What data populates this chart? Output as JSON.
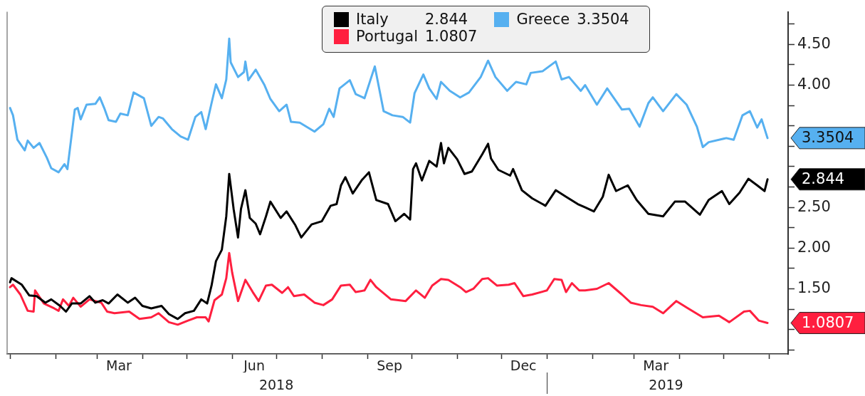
{
  "chart_data": {
    "type": "line",
    "legend": "top",
    "xlim": [
      "2017-12-30",
      "2019-06-14"
    ],
    "xticks": [
      {
        "value": "2018-01-01",
        "label": null
      },
      {
        "value": "2018-02-01",
        "label": null
      },
      {
        "value": "2018-03-01",
        "label": null
      },
      {
        "value": "2018-03-16",
        "label": "Mar"
      },
      {
        "value": "2018-04-01",
        "label": null
      },
      {
        "value": "2018-05-01",
        "label": null
      },
      {
        "value": "2018-06-01",
        "label": null
      },
      {
        "value": "2018-06-16",
        "label": "Jun"
      },
      {
        "value": "2018-07-01",
        "label": null
      },
      {
        "value": "2018-08-01",
        "label": null
      },
      {
        "value": "2018-09-01",
        "label": null
      },
      {
        "value": "2018-09-16",
        "label": "Sep"
      },
      {
        "value": "2018-10-01",
        "label": null
      },
      {
        "value": "2018-11-01",
        "label": null
      },
      {
        "value": "2018-12-01",
        "label": null
      },
      {
        "value": "2018-12-16",
        "label": "Dec"
      },
      {
        "value": "2019-01-01",
        "label": null
      },
      {
        "value": "2019-02-01",
        "label": null
      },
      {
        "value": "2019-03-01",
        "label": null
      },
      {
        "value": "2019-03-16",
        "label": "Mar"
      },
      {
        "value": "2019-04-01",
        "label": null
      },
      {
        "value": "2019-05-01",
        "label": null
      },
      {
        "value": "2019-06-01",
        "label": null
      }
    ],
    "x2lim": [
      "2017-12-30",
      "2019-06-14"
    ],
    "x2ticks": [
      {
        "value": "2018-07-01",
        "label": "2018"
      },
      {
        "value": "2019-01-01",
        "label": null
      },
      {
        "value": "2019-03-23",
        "label": "2019"
      }
    ],
    "ylim": [
      0.7,
      4.9
    ],
    "yticks": [
      {
        "value": 0.75,
        "label": null
      },
      {
        "value": 1,
        "label": null
      },
      {
        "value": 1.25,
        "label": null
      },
      {
        "value": 1.5,
        "label": "1.50"
      },
      {
        "value": 1.75,
        "label": null
      },
      {
        "value": 2,
        "label": "2.00"
      },
      {
        "value": 2.25,
        "label": null
      },
      {
        "value": 2.5,
        "label": "2.50"
      },
      {
        "value": 2.75,
        "label": null
      },
      {
        "value": 3,
        "label": null
      },
      {
        "value": 3.25,
        "label": null
      },
      {
        "value": 3.5,
        "label": null
      },
      {
        "value": 3.75,
        "label": null
      },
      {
        "value": 4,
        "label": "4.00"
      },
      {
        "value": 4.25,
        "label": null
      },
      {
        "value": 4.5,
        "label": "4.50"
      },
      {
        "value": 4.75,
        "label": null
      }
    ],
    "annotations": [
      {
        "text": "2.844",
        "x": "2019-05-31",
        "y": 2.844
      },
      {
        "text": "3.3504",
        "x": "2019-05-31",
        "y": 3.3504
      },
      {
        "text": "1.0807",
        "x": "2019-05-31",
        "y": 1.0807
      }
    ],
    "series": [
      {
        "name": "Italy",
        "color": "#000000",
        "x": [
          "2018-01-01",
          "2018-01-02",
          "2018-01-09",
          "2018-01-14",
          "2018-01-19",
          "2018-01-25",
          "2018-01-29",
          "2018-02-04",
          "2018-02-08",
          "2018-02-12",
          "2018-02-18",
          "2018-02-24",
          "2018-02-28",
          "2018-03-05",
          "2018-03-09",
          "2018-03-15",
          "2018-03-22",
          "2018-03-27",
          "2018-04-01",
          "2018-04-07",
          "2018-04-14",
          "2018-04-19",
          "2018-04-25",
          "2018-04-30",
          "2018-05-06",
          "2018-05-11",
          "2018-05-15",
          "2018-05-18",
          "2018-05-21",
          "2018-05-25",
          "2018-05-28",
          "2018-05-30",
          "2018-06-02",
          "2018-06-05",
          "2018-06-07",
          "2018-06-10",
          "2018-06-13",
          "2018-06-17",
          "2018-06-20",
          "2018-06-24",
          "2018-06-27",
          "2018-07-04",
          "2018-07-08",
          "2018-07-14",
          "2018-07-18",
          "2018-07-25",
          "2018-08-01",
          "2018-08-07",
          "2018-08-11",
          "2018-08-14",
          "2018-08-17",
          "2018-08-22",
          "2018-08-28",
          "2018-09-02",
          "2018-09-07",
          "2018-09-15",
          "2018-09-20",
          "2018-09-26",
          "2018-09-30",
          "2018-10-02",
          "2018-10-04",
          "2018-10-08",
          "2018-10-13",
          "2018-10-18",
          "2018-10-21",
          "2018-10-23",
          "2018-10-26",
          "2018-11-01",
          "2018-11-06",
          "2018-11-11",
          "2018-11-18",
          "2018-11-22",
          "2018-11-24",
          "2018-11-29",
          "2018-12-07",
          "2018-12-09",
          "2018-12-15",
          "2018-12-22",
          "2018-12-31",
          "2019-01-07",
          "2019-01-14",
          "2019-01-22",
          "2019-01-27",
          "2019-02-02",
          "2019-02-08",
          "2019-02-12",
          "2019-02-17",
          "2019-02-25",
          "2019-03-03",
          "2019-03-11",
          "2019-03-21",
          "2019-03-29",
          "2019-04-05",
          "2019-04-15",
          "2019-04-21",
          "2019-04-30",
          "2019-05-05",
          "2019-05-12",
          "2019-05-18",
          "2019-05-24",
          "2019-05-29",
          "2019-05-31"
        ],
        "values": [
          1.58,
          1.63,
          1.55,
          1.42,
          1.41,
          1.33,
          1.37,
          1.29,
          1.22,
          1.32,
          1.32,
          1.41,
          1.33,
          1.36,
          1.32,
          1.43,
          1.33,
          1.39,
          1.29,
          1.26,
          1.29,
          1.19,
          1.13,
          1.2,
          1.23,
          1.37,
          1.32,
          1.54,
          1.84,
          1.98,
          2.39,
          2.91,
          2.48,
          2.13,
          2.48,
          2.71,
          2.37,
          2.3,
          2.17,
          2.39,
          2.57,
          2.37,
          2.45,
          2.28,
          2.13,
          2.29,
          2.33,
          2.52,
          2.54,
          2.77,
          2.87,
          2.67,
          2.83,
          2.93,
          2.59,
          2.54,
          2.33,
          2.42,
          2.35,
          2.97,
          3.04,
          2.83,
          3.07,
          3.0,
          3.29,
          3.04,
          3.23,
          3.09,
          2.91,
          2.94,
          3.15,
          3.28,
          3.1,
          2.96,
          2.89,
          2.97,
          2.71,
          2.61,
          2.52,
          2.71,
          2.63,
          2.54,
          2.5,
          2.45,
          2.63,
          2.9,
          2.7,
          2.77,
          2.59,
          2.42,
          2.39,
          2.57,
          2.57,
          2.41,
          2.59,
          2.7,
          2.54,
          2.68,
          2.85,
          2.77,
          2.7,
          2.844
        ]
      },
      {
        "name": "Greece",
        "color": "#56b0f0",
        "x": [
          "2018-01-01",
          "2018-01-03",
          "2018-01-06",
          "2018-01-11",
          "2018-01-13",
          "2018-01-17",
          "2018-01-21",
          "2018-01-26",
          "2018-01-29",
          "2018-02-03",
          "2018-02-07",
          "2018-02-09",
          "2018-02-14",
          "2018-02-16",
          "2018-02-18",
          "2018-02-22",
          "2018-02-28",
          "2018-03-03",
          "2018-03-06",
          "2018-03-09",
          "2018-03-14",
          "2018-03-17",
          "2018-03-22",
          "2018-03-26",
          "2018-04-02",
          "2018-04-07",
          "2018-04-12",
          "2018-04-15",
          "2018-04-21",
          "2018-04-27",
          "2018-05-02",
          "2018-05-07",
          "2018-05-11",
          "2018-05-14",
          "2018-05-18",
          "2018-05-21",
          "2018-05-25",
          "2018-05-28",
          "2018-05-30",
          "2018-05-31",
          "2018-06-05",
          "2018-06-09",
          "2018-06-10",
          "2018-06-12",
          "2018-06-17",
          "2018-06-23",
          "2018-06-27",
          "2018-07-03",
          "2018-07-08",
          "2018-07-11",
          "2018-07-17",
          "2018-07-27",
          "2018-08-02",
          "2018-08-06",
          "2018-08-09",
          "2018-08-13",
          "2018-08-20",
          "2018-08-24",
          "2018-08-30",
          "2018-09-06",
          "2018-09-12",
          "2018-09-18",
          "2018-09-25",
          "2018-09-30",
          "2018-10-03",
          "2018-10-09",
          "2018-10-13",
          "2018-10-18",
          "2018-10-21",
          "2018-10-27",
          "2018-11-03",
          "2018-11-09",
          "2018-11-17",
          "2018-11-22",
          "2018-11-27",
          "2018-12-05",
          "2018-12-11",
          "2018-12-18",
          "2018-12-21",
          "2018-12-29",
          "2019-01-07",
          "2019-01-11",
          "2019-01-16",
          "2019-01-24",
          "2019-01-27",
          "2019-02-04",
          "2019-02-11",
          "2019-02-21",
          "2019-02-26",
          "2019-03-05",
          "2019-03-11",
          "2019-03-14",
          "2019-03-21",
          "2019-03-30",
          "2019-04-06",
          "2019-04-13",
          "2019-04-17",
          "2019-04-21",
          "2019-05-03",
          "2019-05-08",
          "2019-05-14",
          "2019-05-19",
          "2019-05-24",
          "2019-05-27",
          "2019-05-31"
        ],
        "values": [
          3.72,
          3.63,
          3.33,
          3.2,
          3.32,
          3.23,
          3.29,
          3.11,
          2.98,
          2.93,
          3.03,
          2.97,
          3.7,
          3.72,
          3.58,
          3.76,
          3.77,
          3.85,
          3.72,
          3.57,
          3.55,
          3.65,
          3.63,
          3.91,
          3.84,
          3.5,
          3.61,
          3.59,
          3.46,
          3.37,
          3.33,
          3.61,
          3.67,
          3.46,
          3.78,
          4.01,
          3.84,
          4.07,
          4.57,
          4.28,
          4.1,
          4.16,
          4.29,
          4.06,
          4.19,
          4.0,
          3.83,
          3.68,
          3.76,
          3.55,
          3.54,
          3.43,
          3.52,
          3.71,
          3.61,
          3.96,
          4.06,
          3.89,
          3.84,
          4.23,
          3.68,
          3.63,
          3.61,
          3.54,
          3.9,
          4.13,
          3.96,
          3.83,
          4.04,
          3.93,
          3.85,
          3.91,
          4.1,
          4.3,
          4.1,
          3.93,
          4.04,
          4.01,
          4.15,
          4.17,
          4.29,
          4.07,
          4.1,
          3.93,
          4.0,
          3.76,
          3.96,
          3.7,
          3.71,
          3.49,
          3.78,
          3.85,
          3.68,
          3.89,
          3.76,
          3.49,
          3.24,
          3.3,
          3.35,
          3.33,
          3.63,
          3.68,
          3.48,
          3.58,
          3.3504
        ]
      },
      {
        "name": "Portugal",
        "color": "#ff1f3f",
        "x": [
          "2018-01-01",
          "2018-01-03",
          "2018-01-08",
          "2018-01-13",
          "2018-01-17",
          "2018-01-18",
          "2018-01-24",
          "2018-01-31",
          "2018-02-03",
          "2018-02-06",
          "2018-02-10",
          "2018-02-13",
          "2018-02-18",
          "2018-02-24",
          "2018-03-04",
          "2018-03-08",
          "2018-03-13",
          "2018-03-23",
          "2018-03-30",
          "2018-04-07",
          "2018-04-12",
          "2018-04-19",
          "2018-04-25",
          "2018-05-02",
          "2018-05-08",
          "2018-05-14",
          "2018-05-16",
          "2018-05-20",
          "2018-05-25",
          "2018-05-28",
          "2018-05-30",
          "2018-06-01",
          "2018-06-05",
          "2018-06-10",
          "2018-06-15",
          "2018-06-19",
          "2018-06-24",
          "2018-06-28",
          "2018-07-05",
          "2018-07-09",
          "2018-07-13",
          "2018-07-20",
          "2018-07-27",
          "2018-08-02",
          "2018-08-08",
          "2018-08-14",
          "2018-08-20",
          "2018-08-24",
          "2018-08-30",
          "2018-09-03",
          "2018-09-07",
          "2018-09-17",
          "2018-09-27",
          "2018-10-04",
          "2018-10-10",
          "2018-10-15",
          "2018-10-21",
          "2018-10-26",
          "2018-11-03",
          "2018-11-07",
          "2018-11-12",
          "2018-11-18",
          "2018-11-22",
          "2018-11-28",
          "2018-12-06",
          "2018-12-10",
          "2018-12-16",
          "2018-12-22",
          "2019-01-01",
          "2019-01-06",
          "2019-01-11",
          "2019-01-14",
          "2019-01-18",
          "2019-01-23",
          "2019-01-27",
          "2019-02-04",
          "2019-02-12",
          "2019-02-21",
          "2019-02-27",
          "2019-03-06",
          "2019-03-14",
          "2019-03-21",
          "2019-03-30",
          "2019-04-07",
          "2019-04-17",
          "2019-04-28",
          "2019-05-05",
          "2019-05-15",
          "2019-05-19",
          "2019-05-25",
          "2019-05-31"
        ],
        "values": [
          1.52,
          1.55,
          1.43,
          1.23,
          1.22,
          1.48,
          1.32,
          1.26,
          1.23,
          1.37,
          1.29,
          1.39,
          1.28,
          1.37,
          1.33,
          1.22,
          1.2,
          1.22,
          1.13,
          1.15,
          1.2,
          1.09,
          1.06,
          1.11,
          1.15,
          1.15,
          1.1,
          1.36,
          1.43,
          1.63,
          1.94,
          1.7,
          1.35,
          1.61,
          1.46,
          1.35,
          1.54,
          1.55,
          1.45,
          1.52,
          1.41,
          1.43,
          1.33,
          1.3,
          1.37,
          1.54,
          1.55,
          1.46,
          1.48,
          1.61,
          1.52,
          1.37,
          1.35,
          1.48,
          1.39,
          1.54,
          1.62,
          1.61,
          1.52,
          1.46,
          1.5,
          1.62,
          1.63,
          1.54,
          1.55,
          1.57,
          1.41,
          1.43,
          1.48,
          1.62,
          1.61,
          1.46,
          1.57,
          1.48,
          1.48,
          1.5,
          1.57,
          1.43,
          1.33,
          1.3,
          1.28,
          1.2,
          1.35,
          1.26,
          1.15,
          1.17,
          1.09,
          1.22,
          1.23,
          1.11,
          1.0807
        ]
      }
    ]
  }
}
